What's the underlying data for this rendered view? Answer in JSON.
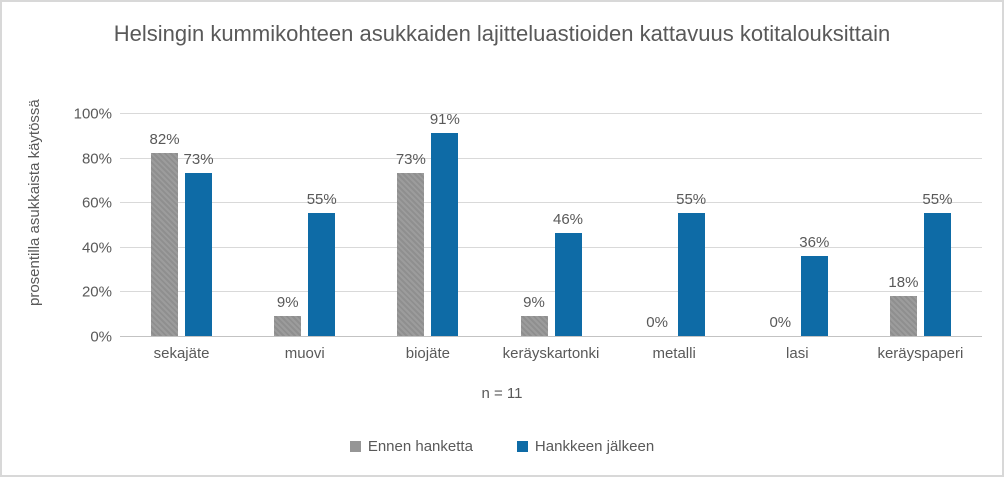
{
  "title": "Helsingin kummikohteen asukkaiden lajitteluastioiden kattavuus kotitalouksittain",
  "chart_data": {
    "type": "bar",
    "title": "Helsingin kummikohteen asukkaiden lajitteluastioiden kattavuus kotitalouksittain",
    "categories": [
      "sekajäte",
      "muovi",
      "biojäte",
      "keräyskartonki",
      "metalli",
      "lasi",
      "keräyspaperi"
    ],
    "series": [
      {
        "name": "Ennen hanketta",
        "color": "#969696",
        "values": [
          82,
          9,
          73,
          9,
          0,
          0,
          18
        ]
      },
      {
        "name": "Hankkeen jälkeen",
        "color": "#0e6ba6",
        "values": [
          73,
          55,
          91,
          46,
          55,
          36,
          55
        ]
      }
    ],
    "data_labels": [
      [
        "82%",
        "9%",
        "73%",
        "9%",
        "0%",
        "0%",
        "18%"
      ],
      [
        "73%",
        "55%",
        "91%",
        "46%",
        "55%",
        "36%",
        "55%"
      ]
    ],
    "xlabel": "n = 11",
    "ylabel": "prosentilla asukkaista käytössä",
    "ylim": [
      0,
      100
    ],
    "ytick_step": 20,
    "yticks": [
      "0%",
      "20%",
      "40%",
      "60%",
      "80%",
      "100%"
    ],
    "grid": true,
    "legend_position": "bottom"
  },
  "colors": {
    "text": "#595959",
    "gridline": "#d9d9d9",
    "baseline": "#c3c3c3",
    "series_gray": "#969696",
    "series_blue": "#0e6ba6",
    "frame_border": "#d8d8d8"
  }
}
